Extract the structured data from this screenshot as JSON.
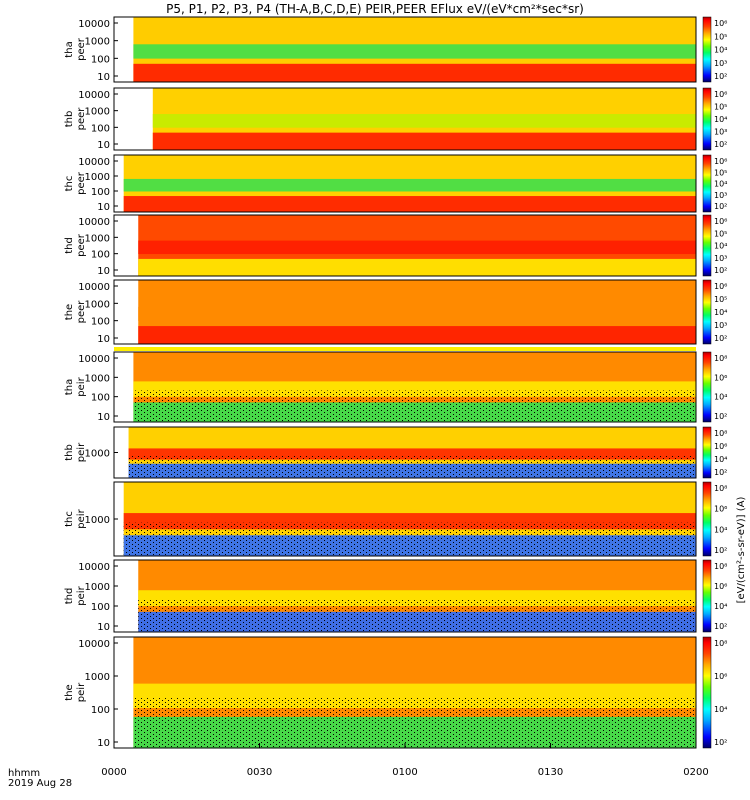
{
  "chart_data": {
    "type": "heatmap",
    "title": "P5, P1, P2, P3, P4 (TH-A,B,C,D,E) PEIR,PEER EFlux eV/(eV*cm²*sec*sr)",
    "x_axis": {
      "label_line1": "hhmm",
      "label_line2": "2019 Aug 28",
      "ticks": [
        "0000",
        "0030",
        "0100",
        "0130",
        "0200"
      ],
      "range_minutes": [
        0,
        120
      ]
    },
    "colorbar": {
      "unit_label": "[eV/(cm²-s-sr-eV)] (A)",
      "scale": "log",
      "colors": [
        "#000066",
        "#0000ff",
        "#00aaff",
        "#00ffff",
        "#00ff66",
        "#66ff00",
        "#ffff00",
        "#ffaa00",
        "#ff5500",
        "#ff0000",
        "#aa0000"
      ],
      "tick_labels_peer": [
        "10⁶",
        "10⁵",
        "10⁴",
        "10³",
        "10²"
      ],
      "tick_labels_peir": [
        "10⁸",
        "10⁶",
        "10⁴",
        "10²"
      ]
    },
    "panels": [
      {
        "probe": "tha",
        "species": "peer",
        "yticks": [
          "10000",
          "1000",
          "100",
          "10"
        ],
        "data_start_min": 4,
        "data_end_min": 120,
        "dominant": "yellow-orange",
        "low_energy_band": "red",
        "mid_band": "green"
      },
      {
        "probe": "thb",
        "species": "peer",
        "yticks": [
          "10000",
          "1000",
          "100",
          "10"
        ],
        "data_start_min": 8,
        "data_end_min": 120,
        "dominant": "banded",
        "low_energy_band": "red",
        "mid_band": "yellow-green"
      },
      {
        "probe": "thc",
        "species": "peer",
        "yticks": [
          "10000",
          "1000",
          "100",
          "10"
        ],
        "data_start_min": 2,
        "data_end_min": 120,
        "dominant": "banded",
        "low_energy_band": "red",
        "mid_band": "green"
      },
      {
        "probe": "thd",
        "species": "peer",
        "yticks": [
          "10000",
          "1000",
          "100",
          "10"
        ],
        "data_start_min": 5,
        "data_end_min": 120,
        "dominant": "red-orange",
        "low_energy_band": "yellow",
        "mid_band": "red"
      },
      {
        "probe": "the",
        "species": "peer",
        "yticks": [
          "10000",
          "1000",
          "100",
          "10"
        ],
        "data_start_min": 5,
        "data_end_min": 120,
        "dominant": "orange",
        "low_energy_band": "red",
        "mid_band": "orange"
      },
      {
        "probe": "tha",
        "species": "peir",
        "yticks": [
          "10000",
          "1000",
          "100",
          "10"
        ],
        "data_start_min": 4,
        "data_end_min": 120,
        "dominant": "orange",
        "low_energy_band": "green",
        "mid_band": "yellow"
      },
      {
        "probe": "thb",
        "species": "peir",
        "yticks": [
          "1000"
        ],
        "data_start_min": 3,
        "data_end_min": 120,
        "dominant": "banded",
        "low_energy_band": "blue",
        "mid_band": "red"
      },
      {
        "probe": "thc",
        "species": "peir",
        "yticks": [
          "1000"
        ],
        "data_start_min": 2,
        "data_end_min": 120,
        "dominant": "banded",
        "low_energy_band": "blue",
        "mid_band": "red"
      },
      {
        "probe": "thd",
        "species": "peir",
        "yticks": [
          "10000",
          "1000",
          "100",
          "10"
        ],
        "data_start_min": 5,
        "data_end_min": 120,
        "dominant": "orange",
        "low_energy_band": "blue",
        "mid_band": "yellow"
      },
      {
        "probe": "the",
        "species": "peir",
        "yticks": [
          "10000",
          "1000",
          "100",
          "10"
        ],
        "data_start_min": 4,
        "data_end_min": 120,
        "dominant": "orange",
        "low_energy_band": "green",
        "mid_band": "yellow"
      }
    ]
  }
}
